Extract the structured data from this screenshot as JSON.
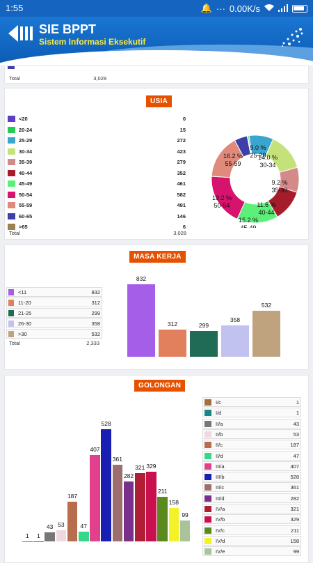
{
  "status": {
    "time": "1:55",
    "speed": "0.00K/s"
  },
  "app": {
    "title": "SIE BPPT",
    "subtitle": "Sistem Informasi Eksekutif"
  },
  "top_partial": {
    "total_label": "Total",
    "total_value": "3,028"
  },
  "usia": {
    "title": "USIA",
    "total_label": "Total",
    "total_value": "3,028",
    "rows": [
      {
        "label": "<20",
        "value": "0",
        "color": "#5b3fc4"
      },
      {
        "label": "20-24",
        "value": "15",
        "color": "#22cc55"
      },
      {
        "label": "25-29",
        "value": "272",
        "color": "#3aa6d0"
      },
      {
        "label": "30-34",
        "value": "423",
        "color": "#c5e27a"
      },
      {
        "label": "35-39",
        "value": "279",
        "color": "#d48a88"
      },
      {
        "label": "40-44",
        "value": "352",
        "color": "#a51c2a"
      },
      {
        "label": "45-49",
        "value": "461",
        "color": "#5cf07a"
      },
      {
        "label": "50-54",
        "value": "582",
        "color": "#d6136d"
      },
      {
        "label": "55-59",
        "value": "491",
        "color": "#e08a7c"
      },
      {
        "label": "60-65",
        "value": "146",
        "color": "#3e3fa8"
      },
      {
        "label": ">65",
        "value": "6",
        "color": "#9a8250"
      }
    ],
    "pie_labels": [
      {
        "pct": "16.2 %",
        "name": "55-59"
      },
      {
        "pct": "14.0 %",
        "name": "30-34"
      },
      {
        "pct": "9.2 %",
        "name": "35-39"
      },
      {
        "pct": "11.6 %",
        "name": "40-44"
      },
      {
        "pct": "15.2 %",
        "name": "45-49"
      },
      {
        "pct": "19.2 %",
        "name": "50-54"
      },
      {
        "pct": "9.0 %",
        "name": "25-29"
      }
    ]
  },
  "masa_kerja": {
    "title": "MASA KERJA",
    "total_label": "Total",
    "total_value": "2,333",
    "rows": [
      {
        "label": "<11",
        "value": "832",
        "color": "#a55ee8"
      },
      {
        "label": "11-20",
        "value": "312",
        "color": "#e2805e"
      },
      {
        "label": "21-25",
        "value": "299",
        "color": "#1f6b55"
      },
      {
        "label": "26-30",
        "value": "358",
        "color": "#c2c2f0"
      },
      {
        "label": ">30",
        "value": "532",
        "color": "#bfa37e"
      }
    ]
  },
  "golongan": {
    "title": "GOLONGAN",
    "rows": [
      {
        "label": "I/c",
        "value": "1",
        "color": "#a0703f"
      },
      {
        "label": "I/d",
        "value": "1",
        "color": "#1a8585"
      },
      {
        "label": "II/a",
        "value": "43",
        "color": "#777777"
      },
      {
        "label": "II/b",
        "value": "53",
        "color": "#f0d8de"
      },
      {
        "label": "II/c",
        "value": "187",
        "color": "#b86e4e"
      },
      {
        "label": "II/d",
        "value": "47",
        "color": "#34d88a"
      },
      {
        "label": "III/a",
        "value": "407",
        "color": "#e2408c"
      },
      {
        "label": "III/b",
        "value": "528",
        "color": "#1a1fb4"
      },
      {
        "label": "III/c",
        "value": "361",
        "color": "#9c6e6e"
      },
      {
        "label": "III/d",
        "value": "282",
        "color": "#7a2f8a"
      },
      {
        "label": "IV/a",
        "value": "321",
        "color": "#b01e35"
      },
      {
        "label": "IV/b",
        "value": "329",
        "color": "#c8104e"
      },
      {
        "label": "IV/c",
        "value": "211",
        "color": "#5a8a1e"
      },
      {
        "label": "IV/d",
        "value": "158",
        "color": "#f2f226"
      },
      {
        "label": "IV/e",
        "value": "99",
        "color": "#a9c49a"
      }
    ]
  },
  "chart_data": [
    {
      "type": "pie",
      "categories": [
        "<20",
        "20-24",
        "25-29",
        "30-34",
        "35-39",
        "40-44",
        "45-49",
        "50-54",
        "55-59",
        "60-65",
        ">65"
      ],
      "values": [
        0,
        15,
        272,
        423,
        279,
        352,
        461,
        582,
        491,
        146,
        6
      ],
      "title": "USIA"
    },
    {
      "type": "bar",
      "categories": [
        "<11",
        "11-20",
        "21-25",
        "26-30",
        ">30"
      ],
      "values": [
        832,
        312,
        299,
        358,
        532
      ],
      "title": "MASA KERJA"
    },
    {
      "type": "bar",
      "categories": [
        "I/c",
        "I/d",
        "II/a",
        "II/b",
        "II/c",
        "II/d",
        "III/a",
        "III/b",
        "III/c",
        "III/d",
        "IV/a",
        "IV/b",
        "IV/c",
        "IV/d",
        "IV/e"
      ],
      "values": [
        1,
        1,
        43,
        53,
        187,
        47,
        407,
        528,
        361,
        282,
        321,
        329,
        211,
        158,
        99
      ],
      "title": "GOLONGAN"
    }
  ]
}
